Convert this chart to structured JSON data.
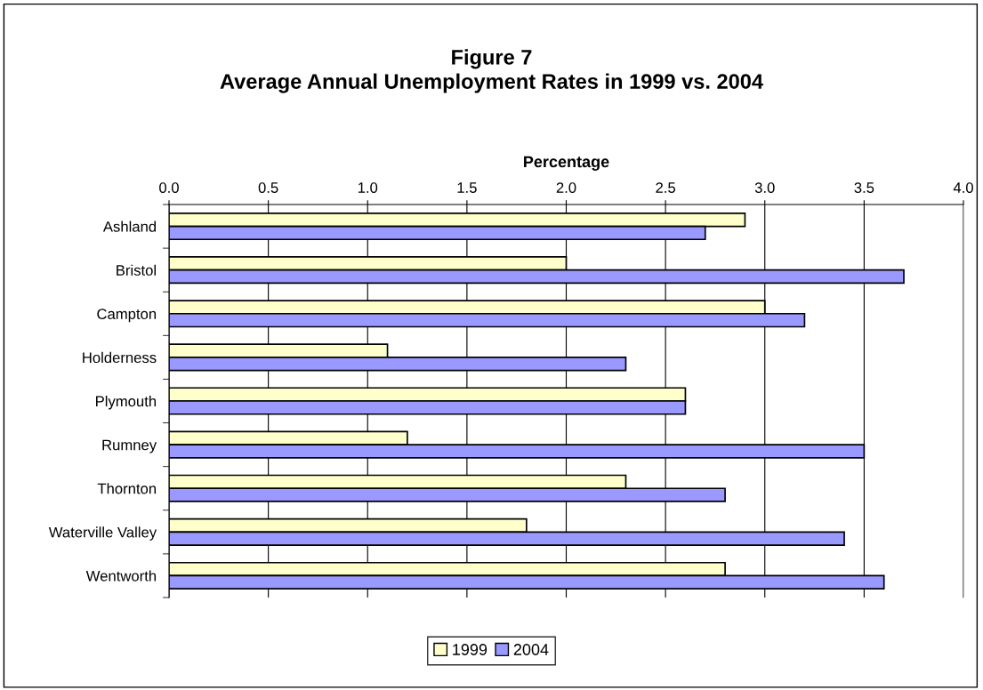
{
  "chart_data": {
    "type": "bar",
    "orientation": "horizontal",
    "title": "Figure 7\nAverage Annual Unemployment Rates in 1999 vs. 2004",
    "xlabel": "Percentage",
    "categories": [
      "Ashland",
      "Bristol",
      "Campton",
      "Holderness",
      "Plymouth",
      "Rumney",
      "Thornton",
      "Waterville Valley",
      "Wentworth"
    ],
    "series": [
      {
        "name": "1999",
        "color": "#ffffcc",
        "values": [
          2.9,
          2.0,
          3.0,
          1.1,
          2.6,
          1.2,
          2.3,
          1.8,
          2.8
        ]
      },
      {
        "name": "2004",
        "color": "#9999ff",
        "values": [
          2.7,
          3.7,
          3.2,
          2.3,
          2.6,
          3.5,
          2.8,
          3.4,
          3.6
        ]
      }
    ],
    "xlim": [
      0,
      4.0
    ],
    "xticks": [
      {
        "value": 0,
        "label": "0.0"
      },
      {
        "value": 0.5,
        "label": "0.5"
      },
      {
        "value": 1.0,
        "label": "1.0"
      },
      {
        "value": 1.5,
        "label": "1.5"
      },
      {
        "value": 2.0,
        "label": "2.0"
      },
      {
        "value": 2.5,
        "label": "2.5"
      },
      {
        "value": 3.0,
        "label": "3.0"
      },
      {
        "value": 3.5,
        "label": "3.5"
      },
      {
        "value": 4.0,
        "label": "4.0"
      }
    ],
    "grid": "x",
    "legend": "bottom"
  }
}
